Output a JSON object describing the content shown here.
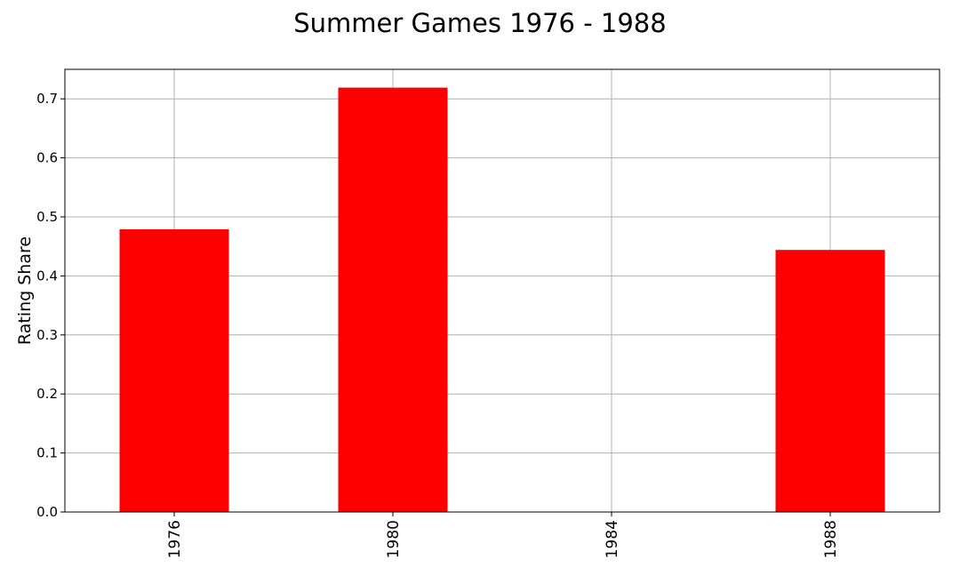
{
  "chart_data": {
    "type": "bar",
    "title": "Summer Games 1976 - 1988",
    "xlabel": "",
    "ylabel": "Rating Share",
    "categories": [
      "1976",
      "1980",
      "1984",
      "1988"
    ],
    "values": [
      0.479,
      0.719,
      0.0,
      0.444
    ],
    "ylim": [
      0.0,
      0.75
    ],
    "yticks": [
      "0.0",
      "0.1",
      "0.2",
      "0.3",
      "0.4",
      "0.5",
      "0.6",
      "0.7"
    ],
    "ytick_values": [
      0.0,
      0.1,
      0.2,
      0.3,
      0.4,
      0.5,
      0.6,
      0.7
    ],
    "bar_color": "#ff0000",
    "grid": true,
    "legend": "none"
  }
}
